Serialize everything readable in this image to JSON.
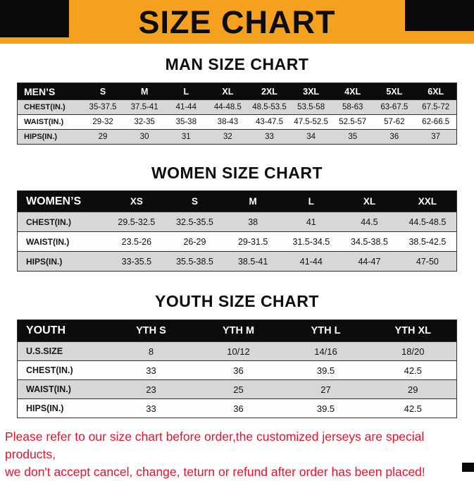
{
  "banner": {
    "title": "SIZE CHART"
  },
  "colors": {
    "banner_bg": "#F5A01E",
    "block_black": "#0B0B0B",
    "header_black": "#0C0C0C",
    "row_gray": "#D7D7D7",
    "footer_red": "#E8112D"
  },
  "sections": [
    {
      "heading": "MAN SIZE CHART",
      "name": "men-size",
      "table": {
        "header": [
          "MEN’S",
          "S",
          "M",
          "L",
          "XL",
          "2XL",
          "3XL",
          "4XL",
          "5XL",
          "6XL"
        ],
        "rows": [
          {
            "label": "CHEST(IN.)",
            "values": [
              "35-37.5",
              "37.5-41",
              "41-44",
              "44-48.5",
              "48.5-53.5",
              "53.5-58",
              "58-63",
              "63-67.5",
              "67.5-72"
            ]
          },
          {
            "label": "WAIST(IN.)",
            "values": [
              "29-32",
              "32-35",
              "35-38",
              "38-43",
              "43-47.5",
              "47.5-52.5",
              "52.5-57",
              "57-62",
              "62-66.5"
            ]
          },
          {
            "label": "HIPS(IN.)",
            "values": [
              "29",
              "30",
              "31",
              "32",
              "33",
              "34",
              "35",
              "36",
              "37"
            ]
          }
        ]
      }
    },
    {
      "heading": "WOMEN SIZE CHART",
      "name": "women-size",
      "table": {
        "header": [
          "WOMEN’S",
          "XS",
          "S",
          "M",
          "L",
          "XL",
          "XXL"
        ],
        "rows": [
          {
            "label": "CHEST(IN.)",
            "values": [
              "29.5-32.5",
              "32.5-35.5",
              "38",
              "41",
              "44.5",
              "44.5-48.5"
            ]
          },
          {
            "label": "WAIST(IN.)",
            "values": [
              "23.5-26",
              "26-29",
              "29-31.5",
              "31.5-34.5",
              "34.5-38.5",
              "38.5-42.5"
            ]
          },
          {
            "label": "HIPS(IN.)",
            "values": [
              "33-35.5",
              "35.5-38.5",
              "38.5-41",
              "41-44",
              "44-47",
              "47-50"
            ]
          }
        ]
      }
    },
    {
      "heading": "YOUTH SIZE CHART",
      "name": "youth-size",
      "table": {
        "header": [
          "YOUTH",
          "YTH S",
          "YTH M",
          "YTH L",
          "YTH XL"
        ],
        "rows": [
          {
            "label": "U.S.SIZE",
            "values": [
              "8",
              "10/12",
              "14/16",
              "18/20"
            ]
          },
          {
            "label": "CHEST(IN.)",
            "values": [
              "33",
              "36",
              "39.5",
              "42.5"
            ]
          },
          {
            "label": "WAIST(IN.)",
            "values": [
              "23",
              "25",
              "27",
              "29"
            ]
          },
          {
            "label": "HIPS(IN.)",
            "values": [
              "33",
              "36",
              "39.5",
              "42.5"
            ]
          }
        ]
      }
    }
  ],
  "footer": {
    "line1": "Please refer to our size chart before order,the customized jerseys are special products,",
    "line2": "we don't accept cancel, change, teturn or refund after order has been placed!"
  }
}
